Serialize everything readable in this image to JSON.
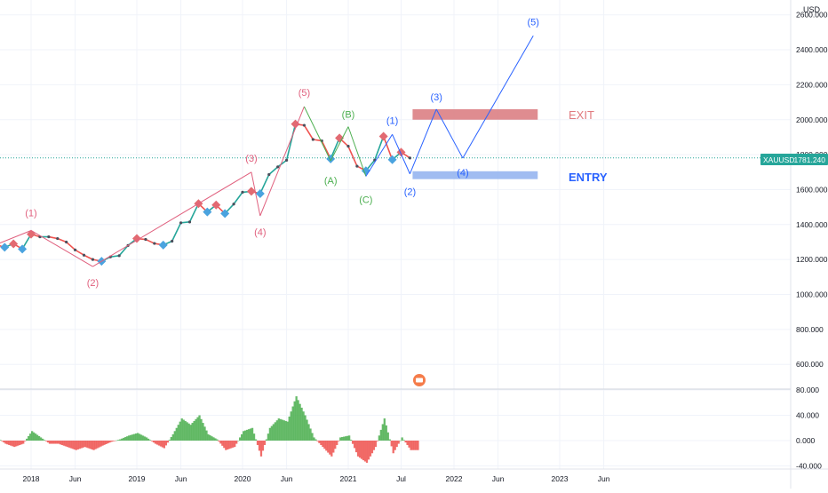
{
  "header": {
    "currency": "USD"
  },
  "symbol": {
    "name": "XAUUSD",
    "last_price": "1781.240"
  },
  "price_axis": {
    "labels": [
      "2600.000",
      "2400.000",
      "2200.000",
      "2000.000",
      "1800.000",
      "1600.000",
      "1400.000",
      "1200.000",
      "1000.000",
      "800.000",
      "600.000"
    ]
  },
  "osc_axis": {
    "labels": [
      "80.000",
      "40.000",
      "0.000",
      "-40.000"
    ]
  },
  "time_axis": {
    "labels": [
      "2018",
      "Jun",
      "2019",
      "Jun",
      "2020",
      "Jun",
      "2021",
      "Jul",
      "2022",
      "Jun",
      "2023",
      "Jun"
    ]
  },
  "zones": {
    "exit_label": "EXIT",
    "entry_label": "ENTRY"
  },
  "colors": {
    "up": "#26a69a",
    "down": "#ef5350",
    "red_wave": "#e0607e",
    "green_wave": "#4caf50",
    "blue_wave": "#2962ff",
    "exit_zone": "#d9787c",
    "entry_zone": "#8fb0ee",
    "price_line": "#26a69a",
    "osc_green": "#4caf50",
    "osc_red": "#ef5350"
  },
  "chart_data": [
    {
      "type": "line",
      "title": "",
      "series": [
        {
          "values": [
            [
              "2017-09",
              1285
            ],
            [
              "2017-10",
              1270
            ],
            [
              "2017-11",
              1290
            ],
            [
              "2017-12",
              1260
            ],
            [
              "2018-01",
              1345
            ],
            [
              "2018-02",
              1330
            ],
            [
              "2018-03",
              1330
            ],
            [
              "2018-04",
              1320
            ],
            [
              "2018-05",
              1300
            ],
            [
              "2018-06",
              1255
            ],
            [
              "2018-07",
              1225
            ],
            [
              "2018-08",
              1200
            ],
            [
              "2018-09",
              1190
            ],
            [
              "2018-10",
              1215
            ],
            [
              "2018-11",
              1222
            ],
            [
              "2018-12",
              1280
            ],
            [
              "2019-01",
              1320
            ],
            [
              "2019-02",
              1315
            ],
            [
              "2019-03",
              1292
            ],
            [
              "2019-04",
              1283
            ],
            [
              "2019-05",
              1305
            ],
            [
              "2019-06",
              1410
            ],
            [
              "2019-07",
              1415
            ],
            [
              "2019-08",
              1520
            ],
            [
              "2019-09",
              1472
            ],
            [
              "2019-10",
              1512
            ],
            [
              "2019-11",
              1463
            ],
            [
              "2019-12",
              1517
            ],
            [
              "2020-01",
              1585
            ],
            [
              "2020-02",
              1590
            ],
            [
              "2020-03",
              1577
            ],
            [
              "2020-04",
              1686
            ],
            [
              "2020-05",
              1730
            ],
            [
              "2020-06",
              1768
            ],
            [
              "2020-07",
              1975
            ],
            [
              "2020-08",
              1968
            ],
            [
              "2020-09",
              1887
            ],
            [
              "2020-10",
              1879
            ],
            [
              "2020-11",
              1776
            ],
            [
              "2020-12",
              1895
            ],
            [
              "2021-01",
              1848
            ],
            [
              "2021-02",
              1734
            ],
            [
              "2021-03",
              1708
            ],
            [
              "2021-04",
              1769
            ],
            [
              "2021-05",
              1905
            ],
            [
              "2021-06",
              1771
            ],
            [
              "2021-07",
              1814
            ],
            [
              "2021-08",
              1781
            ]
          ]
        }
      ],
      "annotations": {
        "red_wave": {
          "labels": [
            "(1)",
            "(2)",
            "(3)",
            "(4)",
            "(5)"
          ],
          "points": [
            [
              "2018-01",
              1366
            ],
            [
              "2018-08",
              1160
            ],
            [
              "2020-02",
              1700
            ],
            [
              "2020-03",
              1450
            ],
            [
              "2020-08",
              2075
            ]
          ]
        },
        "green_wave": {
          "labels": [
            "(A)",
            "(B)",
            "(C)"
          ],
          "points": [
            [
              "2020-11",
              1765
            ],
            [
              "2021-01",
              1960
            ],
            [
              "2021-03",
              1676
            ]
          ]
        },
        "blue_wave": {
          "labels": [
            "(1)",
            "(2)",
            "(3)",
            "(4)",
            "(5)"
          ],
          "points": [
            [
              "2021-06",
              1916
            ],
            [
              "2021-08",
              1690
            ],
            [
              "2021-11",
              2060
            ],
            [
              "2022-02",
              1780
            ],
            [
              "2022-10",
              2480
            ]
          ]
        },
        "exit_zone": {
          "price_low": 2000,
          "price_high": 2060,
          "from": "2021-08",
          "to": "2022-10"
        },
        "entry_zone": {
          "price_low": 1660,
          "price_high": 1705,
          "from": "2021-08",
          "to": "2022-10"
        }
      },
      "yrange": [
        500,
        2650
      ],
      "ylabel": "",
      "grid": true,
      "legend": "none"
    },
    {
      "type": "bar",
      "title": "",
      "series": [
        {
          "values": [
            [
              "2017-09",
              5
            ],
            [
              "2017-10",
              -5
            ],
            [
              "2017-11",
              -10
            ],
            [
              "2017-12",
              -5
            ],
            [
              "2018-01",
              15
            ],
            [
              "2018-02",
              5
            ],
            [
              "2018-03",
              -5
            ],
            [
              "2018-04",
              -5
            ],
            [
              "2018-05",
              -10
            ],
            [
              "2018-06",
              -15
            ],
            [
              "2018-07",
              -10
            ],
            [
              "2018-08",
              -15
            ],
            [
              "2018-09",
              -8
            ],
            [
              "2018-10",
              -2
            ],
            [
              "2018-11",
              2
            ],
            [
              "2018-12",
              8
            ],
            [
              "2019-01",
              12
            ],
            [
              "2019-02",
              5
            ],
            [
              "2019-03",
              -5
            ],
            [
              "2019-04",
              -12
            ],
            [
              "2019-05",
              10
            ],
            [
              "2019-06",
              35
            ],
            [
              "2019-07",
              25
            ],
            [
              "2019-08",
              40
            ],
            [
              "2019-09",
              10
            ],
            [
              "2019-10",
              2
            ],
            [
              "2019-11",
              -15
            ],
            [
              "2019-12",
              -10
            ],
            [
              "2020-01",
              15
            ],
            [
              "2020-02",
              20
            ],
            [
              "2020-03",
              -25
            ],
            [
              "2020-04",
              20
            ],
            [
              "2020-05",
              35
            ],
            [
              "2020-06",
              30
            ],
            [
              "2020-07",
              70
            ],
            [
              "2020-08",
              40
            ],
            [
              "2020-09",
              5
            ],
            [
              "2020-10",
              -10
            ],
            [
              "2020-11",
              -25
            ],
            [
              "2020-12",
              5
            ],
            [
              "2021-01",
              8
            ],
            [
              "2021-02",
              -25
            ],
            [
              "2021-03",
              -35
            ],
            [
              "2021-04",
              -10
            ],
            [
              "2021-05",
              35
            ],
            [
              "2021-06",
              -20
            ],
            [
              "2021-07",
              5
            ],
            [
              "2021-08",
              -15
            ]
          ]
        }
      ],
      "yrange": [
        -45,
        85
      ],
      "grid": true,
      "legend": "none"
    }
  ]
}
